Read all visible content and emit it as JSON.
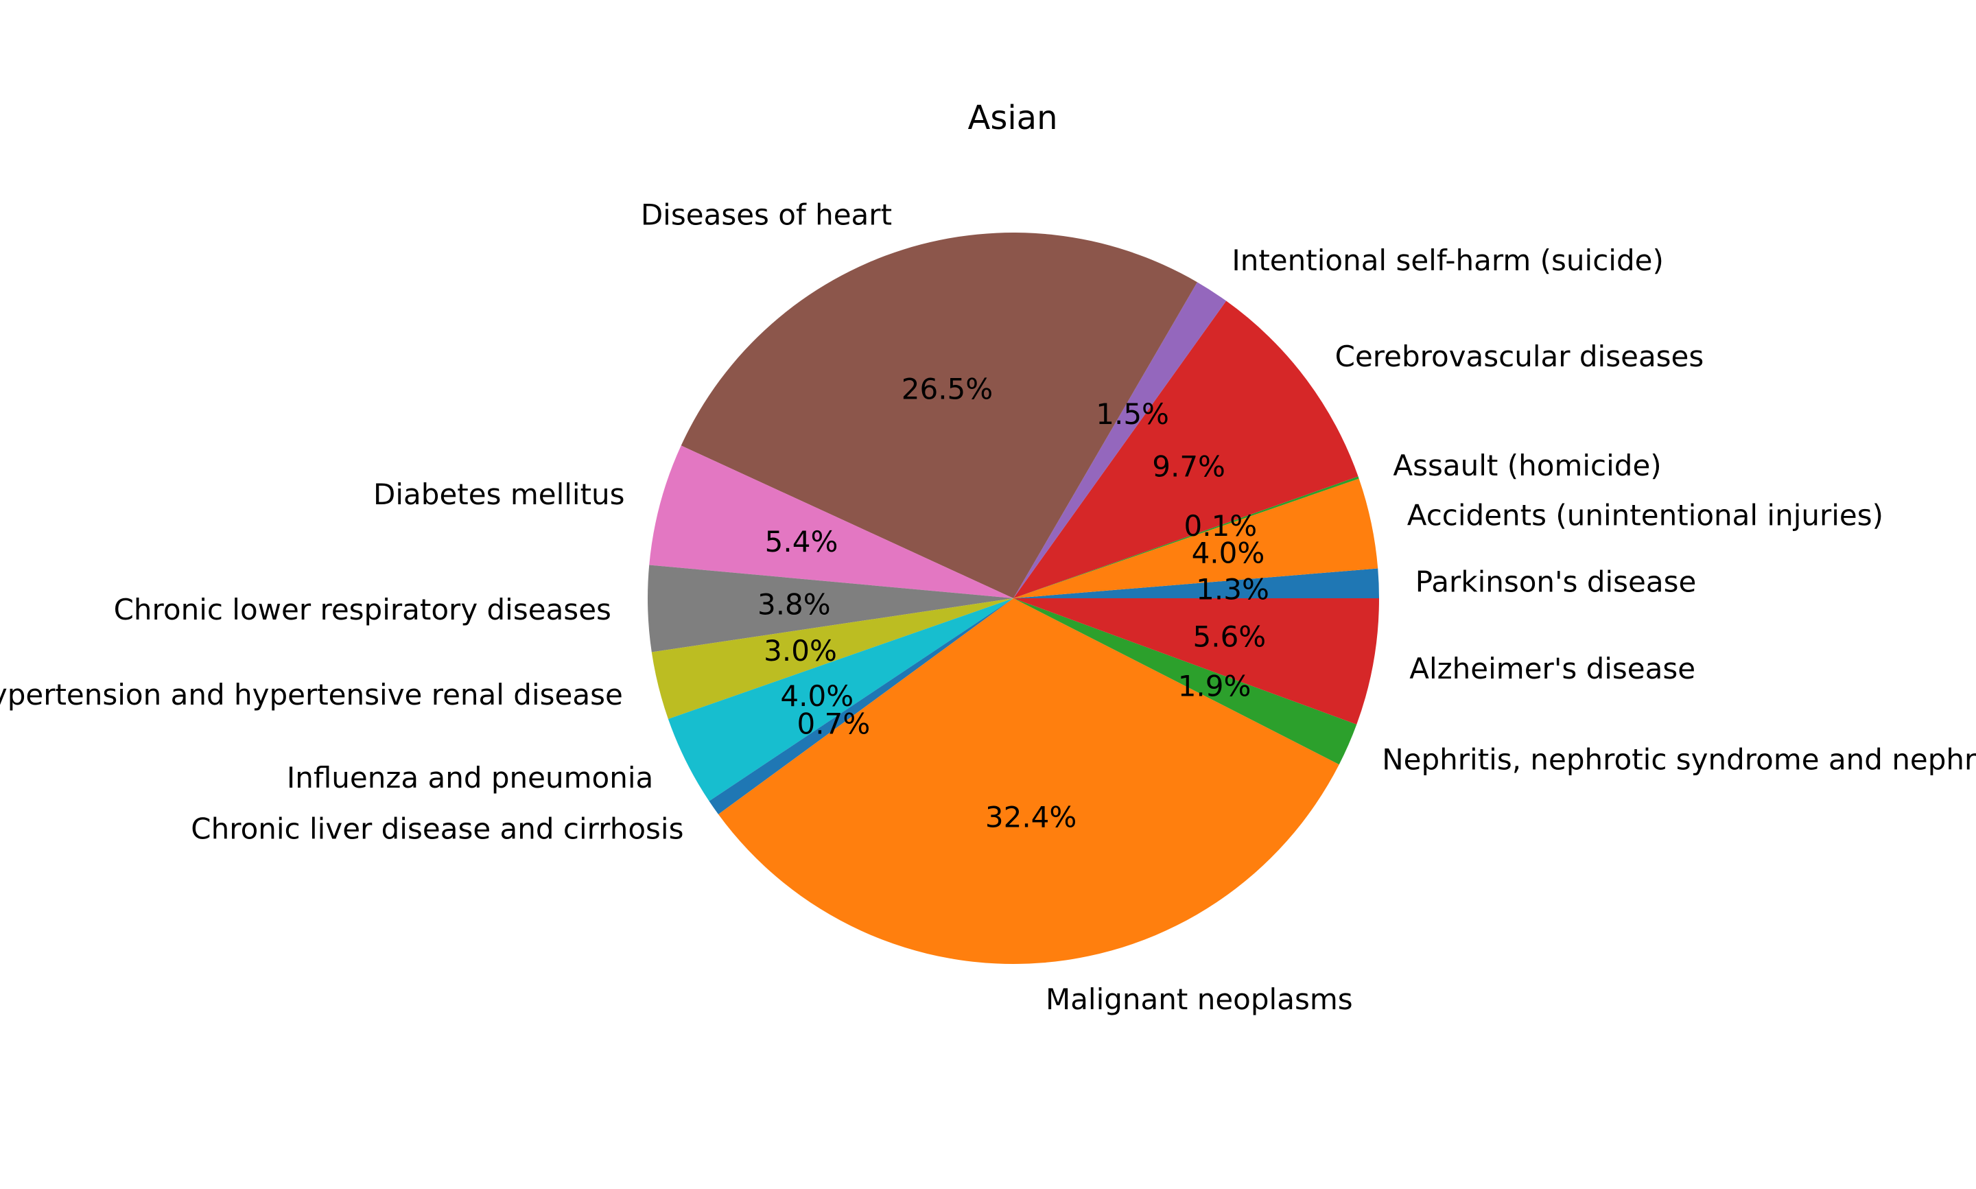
{
  "chart_data": {
    "type": "pie",
    "title": "Asian",
    "start_angle_deg": 0,
    "direction": "counterclockwise",
    "slices": [
      {
        "label": "Parkinson's disease",
        "value": 1.3,
        "pct_label": "1.3%",
        "color": "#1f77b4"
      },
      {
        "label": "Accidents (unintentional injuries)",
        "value": 4.0,
        "pct_label": "4.0%",
        "color": "#ff7f0e"
      },
      {
        "label": "Assault (homicide)",
        "value": 0.1,
        "pct_label": "0.1%",
        "color": "#2ca02c"
      },
      {
        "label": "Cerebrovascular diseases",
        "value": 9.7,
        "pct_label": "9.7%",
        "color": "#d62728"
      },
      {
        "label": "Intentional self-harm (suicide)",
        "value": 1.5,
        "pct_label": "1.5%",
        "color": "#9467bd"
      },
      {
        "label": "Diseases of heart",
        "value": 26.5,
        "pct_label": "26.5%",
        "color": "#8c564b"
      },
      {
        "label": "Diabetes mellitus",
        "value": 5.4,
        "pct_label": "5.4%",
        "color": "#e377c2"
      },
      {
        "label": "Chronic lower respiratory diseases",
        "value": 3.8,
        "pct_label": "3.8%",
        "color": "#7f7f7f"
      },
      {
        "label": "Essential hypertension and hypertensive renal disease",
        "value": 3.0,
        "pct_label": "3.0%",
        "color": "#bcbd22"
      },
      {
        "label": "Influenza and pneumonia",
        "value": 4.0,
        "pct_label": "4.0%",
        "color": "#17becf"
      },
      {
        "label": "Chronic liver disease and cirrhosis",
        "value": 0.7,
        "pct_label": "0.7%",
        "color": "#1f77b4"
      },
      {
        "label": "Malignant neoplasms",
        "value": 32.4,
        "pct_label": "32.4%",
        "color": "#ff7f0e"
      },
      {
        "label": "Nephritis, nephrotic syndrome and nephrosis",
        "value": 1.9,
        "pct_label": "1.9%",
        "color": "#2ca02c"
      },
      {
        "label": "Alzheimer's disease",
        "value": 5.6,
        "pct_label": "5.6%",
        "color": "#d62728"
      }
    ]
  }
}
